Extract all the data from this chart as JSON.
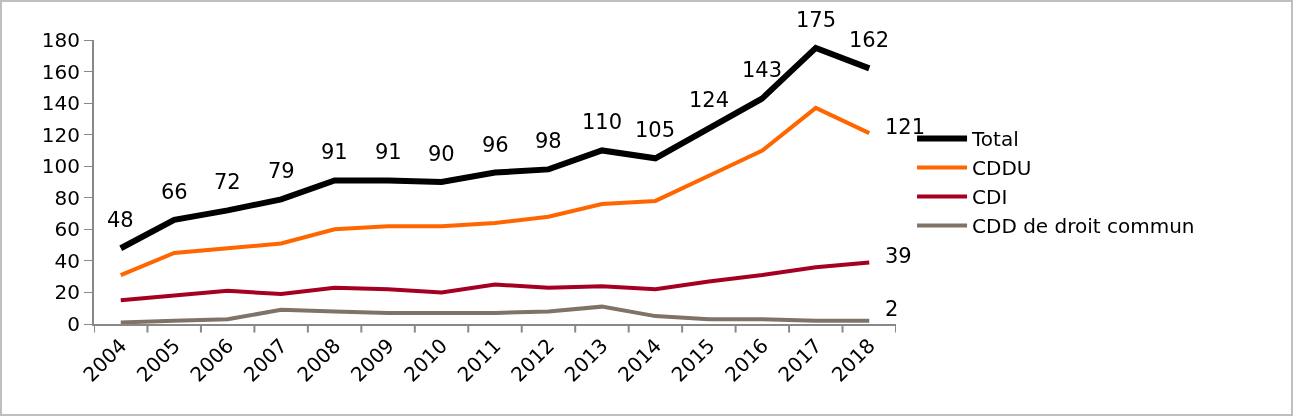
{
  "chart_data": {
    "type": "line",
    "categories": [
      "2004",
      "2005",
      "2006",
      "2007",
      "2008",
      "2009",
      "2010",
      "2011",
      "2012",
      "2013",
      "2014",
      "2015",
      "2016",
      "2017",
      "2018"
    ],
    "series": [
      {
        "name": "Total",
        "color": "#000000",
        "values": [
          48,
          66,
          72,
          79,
          91,
          91,
          90,
          96,
          98,
          110,
          105,
          124,
          143,
          175,
          162
        ],
        "value_labels": [
          "48",
          "66",
          "72",
          "79",
          "91",
          "91",
          "90",
          "96",
          "98",
          "110",
          "105",
          "124",
          "143",
          "175",
          "162"
        ]
      },
      {
        "name": "CDDU",
        "color": "#ff6600",
        "values": [
          31,
          45,
          48,
          51,
          60,
          62,
          62,
          64,
          68,
          76,
          78,
          94,
          110,
          137,
          121
        ],
        "value_labels": [
          null,
          null,
          null,
          null,
          null,
          null,
          null,
          null,
          null,
          null,
          null,
          null,
          null,
          null,
          "121"
        ]
      },
      {
        "name": "CDI",
        "color": "#a50021",
        "values": [
          15,
          18,
          21,
          19,
          23,
          22,
          20,
          25,
          23,
          24,
          22,
          27,
          31,
          36,
          39
        ],
        "value_labels": [
          null,
          null,
          null,
          null,
          null,
          null,
          null,
          null,
          null,
          null,
          null,
          null,
          null,
          null,
          "39"
        ]
      },
      {
        "name": "CDD de droit commun",
        "color": "#7f7368",
        "values": [
          1,
          2,
          3,
          9,
          8,
          7,
          7,
          7,
          8,
          11,
          5,
          3,
          3,
          2,
          2
        ],
        "value_labels": [
          null,
          null,
          null,
          null,
          null,
          null,
          null,
          null,
          null,
          null,
          null,
          null,
          null,
          null,
          "2"
        ]
      }
    ],
    "ylim": [
      0,
      180
    ],
    "yticks": [
      0,
      20,
      40,
      60,
      80,
      100,
      120,
      140,
      160,
      180
    ],
    "grid": false,
    "legend": "right",
    "marker": "none",
    "line_style": "solid"
  }
}
